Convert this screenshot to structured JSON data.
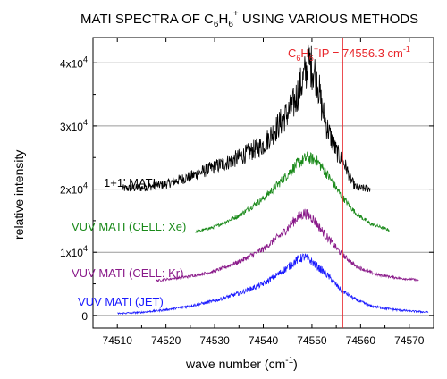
{
  "chart_data": {
    "type": "line",
    "title": {
      "pre": "MATI SPECTRA OF C",
      "sub1": "6",
      "mid": "H",
      "sub2": "6",
      "sup": "+",
      "post": " USING VARIOUS METHODS"
    },
    "xlabel": {
      "pre": "wave number (cm",
      "sup": "-1",
      "post": ")"
    },
    "ylabel": "relative intensity",
    "xlim": [
      74505,
      74575
    ],
    "ylim": [
      -2000,
      44000
    ],
    "x_ticks": [
      "74510",
      "74520",
      "74530",
      "74540",
      "74550",
      "74560",
      "74570"
    ],
    "x_tick_values": [
      74510,
      74520,
      74530,
      74540,
      74550,
      74560,
      74570
    ],
    "y_ticks": [
      {
        "value": 0,
        "mant": "0",
        "exp": ""
      },
      {
        "value": 10000,
        "mant": "1x10",
        "exp": "4"
      },
      {
        "value": 20000,
        "mant": "2x10",
        "exp": "4"
      },
      {
        "value": 30000,
        "mant": "3x10",
        "exp": "4"
      },
      {
        "value": 40000,
        "mant": "4x10",
        "exp": "4"
      }
    ],
    "grid": "horizontal at major ticks",
    "vline": {
      "x": 74556.3,
      "color": "#e8262b",
      "label": {
        "a": "C",
        "b": "6",
        "c": "H",
        "d": "6",
        "e": "+",
        "f": "IP = 74556.3 cm",
        "g": "-1"
      }
    },
    "series": [
      {
        "name": "1+1' MATI",
        "color": "#000000",
        "x_start": 74511,
        "x_end": 74562,
        "baseline": 20000,
        "peak_x": 74549.5,
        "peak_height": 19000,
        "noise": 2500,
        "points": [
          [
            74511,
            20100
          ],
          [
            74515,
            20200
          ],
          [
            74520,
            20800
          ],
          [
            74525,
            22000
          ],
          [
            74530,
            23500
          ],
          [
            74535,
            25000
          ],
          [
            74540,
            27000
          ],
          [
            74543,
            30000
          ],
          [
            74546,
            33000
          ],
          [
            74548,
            37000
          ],
          [
            74549.5,
            40000
          ],
          [
            74551,
            38000
          ],
          [
            74552,
            33000
          ],
          [
            74553,
            30000
          ],
          [
            74555,
            26000
          ],
          [
            74557,
            23500
          ],
          [
            74558,
            21500
          ],
          [
            74559,
            20300
          ],
          [
            74560,
            20100
          ],
          [
            74562,
            20100
          ]
        ]
      },
      {
        "name": "VUV MATI (CELL:  Xe)",
        "color": "#1a8a1a",
        "x_start": 74526,
        "x_end": 74566,
        "baseline": 13000,
        "peak_x": 74549,
        "peak_height": 12000,
        "noise": 700,
        "points": [
          [
            74526,
            13200
          ],
          [
            74530,
            14000
          ],
          [
            74535,
            15800
          ],
          [
            74540,
            18500
          ],
          [
            74544,
            21500
          ],
          [
            74547,
            24000
          ],
          [
            74549,
            25000
          ],
          [
            74551,
            24500
          ],
          [
            74553,
            22500
          ],
          [
            74556,
            19000
          ],
          [
            74559,
            16200
          ],
          [
            74562,
            14500
          ],
          [
            74566,
            13500
          ]
        ]
      },
      {
        "name": "VUV MATI (CELL:  Kr)",
        "color": "#8a1a8a",
        "x_start": 74518,
        "x_end": 74572,
        "baseline": 5300,
        "peak_x": 74548.5,
        "peak_height": 10500,
        "noise": 600,
        "points": [
          [
            74518,
            5500
          ],
          [
            74525,
            6200
          ],
          [
            74530,
            7000
          ],
          [
            74535,
            8500
          ],
          [
            74540,
            10500
          ],
          [
            74544,
            13000
          ],
          [
            74547,
            15500
          ],
          [
            74548.5,
            16200
          ],
          [
            74550,
            15500
          ],
          [
            74553,
            12500
          ],
          [
            74556,
            9800
          ],
          [
            74559,
            7800
          ],
          [
            74563,
            6500
          ],
          [
            74568,
            5900
          ],
          [
            74572,
            5600
          ]
        ]
      },
      {
        "name": "VUV MATI (JET)",
        "color": "#1a1aff",
        "x_start": 74510,
        "x_end": 74574,
        "baseline": 200,
        "peak_x": 74548.5,
        "peak_height": 9000,
        "noise": 500,
        "points": [
          [
            74510,
            300
          ],
          [
            74515,
            500
          ],
          [
            74520,
            900
          ],
          [
            74525,
            1500
          ],
          [
            74530,
            2300
          ],
          [
            74535,
            3500
          ],
          [
            74540,
            5000
          ],
          [
            74544,
            7000
          ],
          [
            74547,
            8800
          ],
          [
            74548.5,
            9300
          ],
          [
            74550,
            8500
          ],
          [
            74553,
            6500
          ],
          [
            74556,
            4000
          ],
          [
            74559,
            2500
          ],
          [
            74562,
            1500
          ],
          [
            74566,
            1000
          ],
          [
            74570,
            700
          ],
          [
            74574,
            500
          ]
        ]
      }
    ]
  }
}
